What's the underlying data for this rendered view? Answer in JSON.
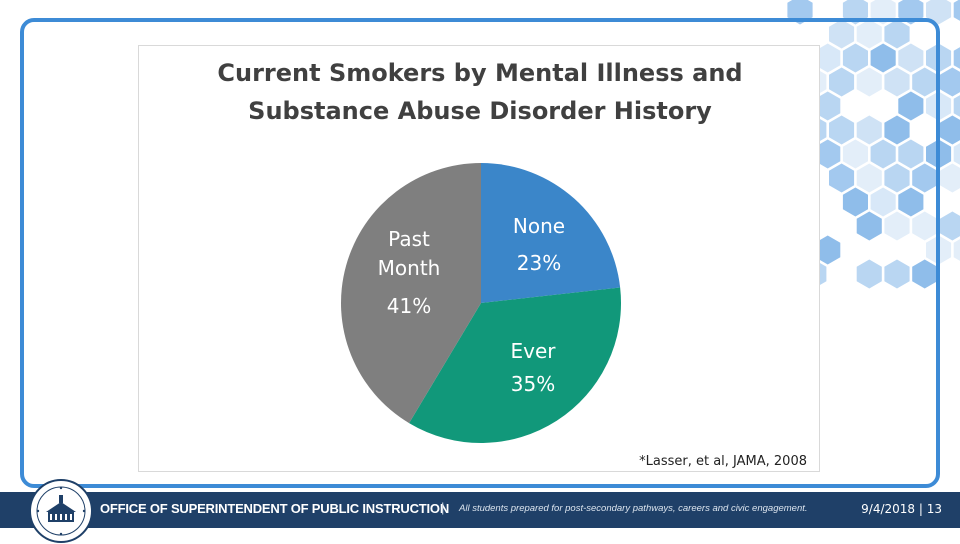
{
  "colors": {
    "none": "#3b86c9",
    "ever": "#11987a",
    "past_month": "#7f7f7f",
    "frame": "#3d8bd6",
    "footer": "#1f4068"
  },
  "chart_data": {
    "type": "pie",
    "title": "Current Smokers by Mental Illness and Substance Abuse Disorder History",
    "title_lines": [
      "Current Smokers by Mental Illness and",
      "Substance Abuse Disorder History"
    ],
    "slices": [
      {
        "name": "None",
        "value": 23,
        "label": "23%",
        "color": "#3b86c9"
      },
      {
        "name": "Ever",
        "value": 35,
        "label": "35%",
        "color": "#11987a"
      },
      {
        "name": "Past Month",
        "name_lines": [
          "Past",
          "Month"
        ],
        "value": 41,
        "label": "41%",
        "color": "#7f7f7f"
      }
    ],
    "legend": "none",
    "start_angle": "12 o'clock, clockwise"
  },
  "citation": "*Lasser, et al, JAMA, 2008",
  "footer": {
    "org": "OFFICE OF SUPERINTENDENT OF PUBLIC INSTRUCTION",
    "separator": "|",
    "tagline": "All students prepared for post-secondary pathways, careers and civic engagement.",
    "date_page": "9/4/2018 | 13"
  },
  "seal": {
    "icon": "osp-seal-icon"
  }
}
